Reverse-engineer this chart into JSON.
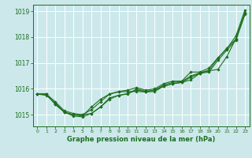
{
  "bg_color": "#cce8eb",
  "grid_color": "#ffffff",
  "line_color": "#1e6e1e",
  "marker_color": "#1e6e1e",
  "title": "Graphe pression niveau de la mer (hPa)",
  "ylim": [
    1014.55,
    1019.25
  ],
  "xlim": [
    -0.5,
    23.5
  ],
  "yticks": [
    1015,
    1016,
    1017,
    1018,
    1019
  ],
  "xticks": [
    0,
    1,
    2,
    3,
    4,
    5,
    6,
    7,
    8,
    9,
    10,
    11,
    12,
    13,
    14,
    15,
    16,
    17,
    18,
    19,
    20,
    21,
    22,
    23
  ],
  "series": [
    [
      1015.8,
      1015.8,
      1015.4,
      1015.1,
      1015.0,
      1014.95,
      1015.3,
      1015.6,
      1015.8,
      1015.9,
      1015.95,
      1016.05,
      1015.95,
      1016.0,
      1016.2,
      1016.3,
      1016.3,
      1016.65,
      1016.65,
      1016.8,
      1017.2,
      1017.55,
      1018.05,
      1019.05
    ],
    [
      1015.8,
      1015.8,
      1015.5,
      1015.15,
      1015.05,
      1015.0,
      1015.2,
      1015.5,
      1015.8,
      1015.88,
      1015.9,
      1015.9,
      1015.88,
      1015.9,
      1016.1,
      1016.2,
      1016.25,
      1016.35,
      1016.6,
      1016.7,
      1016.75,
      1017.25,
      1017.95,
      1018.95
    ],
    [
      1015.8,
      1015.75,
      1015.45,
      1015.1,
      1015.0,
      1015.0,
      1015.05,
      1015.3,
      1015.6,
      1015.75,
      1015.8,
      1016.0,
      1015.9,
      1015.95,
      1016.15,
      1016.25,
      1016.28,
      1016.5,
      1016.62,
      1016.72,
      1017.18,
      1017.58,
      1017.92,
      1018.9
    ],
    [
      1015.8,
      1015.8,
      1015.4,
      1015.1,
      1014.95,
      1014.92,
      1015.05,
      1015.3,
      1015.65,
      1015.75,
      1015.82,
      1015.95,
      1015.9,
      1015.95,
      1016.1,
      1016.2,
      1016.25,
      1016.45,
      1016.6,
      1016.65,
      1017.1,
      1017.5,
      1017.88,
      1018.88
    ]
  ]
}
